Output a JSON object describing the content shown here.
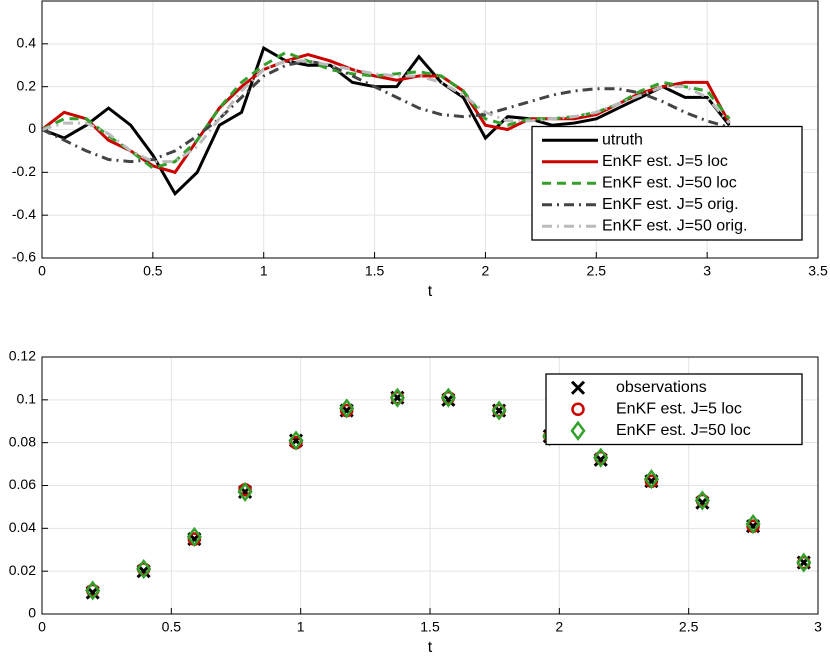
{
  "chart_data": [
    {
      "type": "line",
      "xlabel": "t",
      "xlim": [
        0,
        3.5
      ],
      "xticks": [
        0,
        0.5,
        1,
        1.5,
        2,
        2.5,
        3,
        3.5
      ],
      "ylim": [
        -0.6,
        0.6
      ],
      "yticks": [
        -0.6,
        -0.4,
        -0.2,
        0,
        0.2,
        0.4
      ],
      "grid": true,
      "legend": "lower right",
      "x": [
        0,
        0.1,
        0.2,
        0.3,
        0.4,
        0.5,
        0.6,
        0.7,
        0.8,
        0.9,
        1,
        1.1,
        1.2,
        1.3,
        1.4,
        1.5,
        1.6,
        1.7,
        1.8,
        1.9,
        2,
        2.1,
        2.2,
        2.3,
        2.4,
        2.5,
        2.6,
        2.7,
        2.8,
        2.9,
        3,
        3.1
      ],
      "series": [
        {
          "name": "utruth",
          "color": "#000000",
          "linestyle": "-",
          "values": [
            0,
            -0.04,
            0.02,
            0.1,
            0.02,
            -0.12,
            -0.3,
            -0.2,
            0.02,
            0.08,
            0.38,
            0.32,
            0.3,
            0.3,
            0.22,
            0.2,
            0.2,
            0.34,
            0.22,
            0.15,
            -0.04,
            0.06,
            0.05,
            0.02,
            0.03,
            0.05,
            0.1,
            0.15,
            0.2,
            0.15,
            0.15,
            0.02
          ]
        },
        {
          "name": "EnKF est. J=5 loc",
          "color": "#cc0000",
          "linestyle": "-",
          "values": [
            0,
            0.08,
            0.05,
            -0.05,
            -0.1,
            -0.17,
            -0.2,
            -0.05,
            0.1,
            0.2,
            0.28,
            0.32,
            0.35,
            0.32,
            0.28,
            0.25,
            0.23,
            0.25,
            0.25,
            0.18,
            0.02,
            0,
            0.05,
            0.05,
            0.05,
            0.07,
            0.12,
            0.17,
            0.2,
            0.22,
            0.22,
            0.03
          ]
        },
        {
          "name": "EnKF est. J=50 loc",
          "color": "#33a02c",
          "linestyle": "--",
          "values": [
            0,
            0.05,
            0.05,
            -0.03,
            -0.1,
            -0.18,
            -0.15,
            -0.05,
            0.1,
            0.22,
            0.3,
            0.36,
            0.32,
            0.28,
            0.26,
            0.25,
            0.26,
            0.27,
            0.25,
            0.18,
            0.05,
            0.02,
            0.05,
            0.05,
            0.06,
            0.08,
            0.12,
            0.18,
            0.22,
            0.2,
            0.18,
            0.05
          ]
        },
        {
          "name": "EnKF est. J=5 orig.",
          "color": "#444444",
          "linestyle": "-.",
          "values": [
            0,
            -0.05,
            -0.1,
            -0.14,
            -0.15,
            -0.14,
            -0.1,
            -0.03,
            0.05,
            0.15,
            0.25,
            0.3,
            0.32,
            0.3,
            0.25,
            0.2,
            0.15,
            0.1,
            0.07,
            0.06,
            0.07,
            0.1,
            0.13,
            0.16,
            0.18,
            0.19,
            0.19,
            0.17,
            0.13,
            0.08,
            0.04,
            0.01
          ]
        },
        {
          "name": "EnKF est. J=50 orig.",
          "color": "#bbbbbb",
          "linestyle": "-.",
          "values": [
            0,
            0.03,
            0.03,
            -0.02,
            -0.1,
            -0.15,
            -0.15,
            -0.08,
            0.05,
            0.18,
            0.28,
            0.32,
            0.32,
            0.3,
            0.28,
            0.26,
            0.25,
            0.25,
            0.22,
            0.16,
            0.08,
            0.04,
            0.04,
            0.05,
            0.06,
            0.08,
            0.12,
            0.16,
            0.2,
            0.2,
            0.15,
            0.03
          ]
        }
      ]
    },
    {
      "type": "scatter",
      "xlabel": "t",
      "xlim": [
        0,
        3
      ],
      "xticks": [
        0,
        0.5,
        1,
        1.5,
        2,
        2.5,
        3
      ],
      "ylim": [
        0,
        0.12
      ],
      "yticks": [
        0,
        0.02,
        0.04,
        0.06,
        0.08,
        0.1,
        0.12
      ],
      "grid": true,
      "legend": "upper right",
      "x": [
        0.196,
        0.393,
        0.589,
        0.785,
        0.982,
        1.178,
        1.374,
        1.571,
        1.767,
        1.963,
        2.16,
        2.356,
        2.553,
        2.749,
        2.945
      ],
      "series": [
        {
          "name": "observations",
          "color": "#000000",
          "marker": "x",
          "values": [
            0.01,
            0.02,
            0.035,
            0.057,
            0.081,
            0.095,
            0.101,
            0.1,
            0.095,
            0.083,
            0.072,
            0.062,
            0.052,
            0.041,
            0.024
          ]
        },
        {
          "name": "EnKF est. J=5 loc",
          "color": "#cc0000",
          "marker": "o",
          "values": [
            0.011,
            0.021,
            0.035,
            0.058,
            0.08,
            0.095,
            0.101,
            0.101,
            0.095,
            0.083,
            0.073,
            0.062,
            0.053,
            0.041,
            0.024
          ]
        },
        {
          "name": "EnKF est. J=50 loc",
          "color": "#33a02c",
          "marker": "d",
          "values": [
            0.011,
            0.021,
            0.036,
            0.057,
            0.081,
            0.096,
            0.101,
            0.101,
            0.095,
            0.083,
            0.073,
            0.063,
            0.053,
            0.042,
            0.024
          ]
        }
      ]
    }
  ]
}
